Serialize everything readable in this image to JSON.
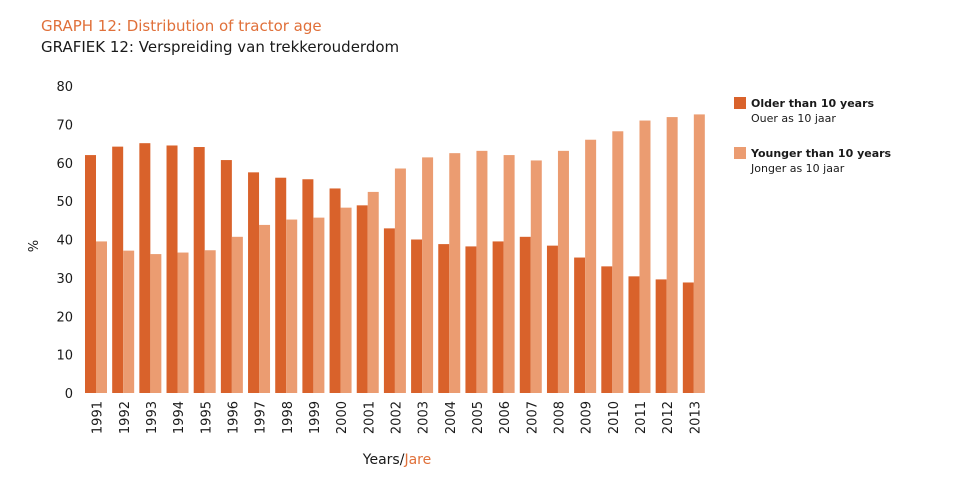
{
  "header": {
    "title_en": "GRAPH 12: Distribution of tractor age",
    "title_af": "GRAFIEK 12: Verspreiding van trekkerouderdom"
  },
  "legend": {
    "items": [
      {
        "label": "Older than 10 years",
        "sublabel": "Ouer as 10 jaar",
        "color": "#d9622b"
      },
      {
        "label": "Younger than 10 years",
        "sublabel": "Jonger as 10 jaar",
        "color": "#eb9c71"
      }
    ]
  },
  "axes": {
    "x_title_en": "Years/",
    "x_title_af": "Jare",
    "y_title": "%"
  },
  "chart_data": {
    "type": "bar",
    "title": "GRAPH 12: Distribution of tractor age",
    "subtitle": "GRAFIEK 12: Verspreiding van trekkerouderdom",
    "xlabel": "Years/Jare",
    "ylabel": "%",
    "ylim": [
      0,
      80
    ],
    "yticks": [
      0,
      10,
      20,
      30,
      40,
      50,
      60,
      70,
      80
    ],
    "grid": false,
    "legend_position": "right",
    "categories": [
      "1991",
      "1992",
      "1993",
      "1994",
      "1995",
      "1996",
      "1997",
      "1998",
      "1999",
      "2000",
      "2001",
      "2002",
      "2003",
      "2004",
      "2005",
      "2006",
      "2007",
      "2008",
      "2009",
      "2010",
      "2011",
      "2012",
      "2013"
    ],
    "series": [
      {
        "name": "Older than 10 years",
        "color": "#d9622b",
        "values": [
          62,
          64.2,
          65.1,
          64.5,
          64.1,
          60.7,
          57.5,
          56.1,
          55.7,
          53.3,
          48.9,
          42.9,
          40,
          38.8,
          38.2,
          39.5,
          40.7,
          38.4,
          35.3,
          33,
          30.4,
          29.6,
          28.8
        ]
      },
      {
        "name": "Younger than 10 years",
        "color": "#eb9c71",
        "values": [
          39.5,
          37.1,
          36.2,
          36.6,
          37.2,
          40.7,
          43.8,
          45.2,
          45.7,
          48.3,
          52.4,
          58.5,
          61.4,
          62.5,
          63.1,
          62,
          60.6,
          63.1,
          66,
          68.2,
          71,
          71.9,
          72.6
        ]
      }
    ]
  }
}
